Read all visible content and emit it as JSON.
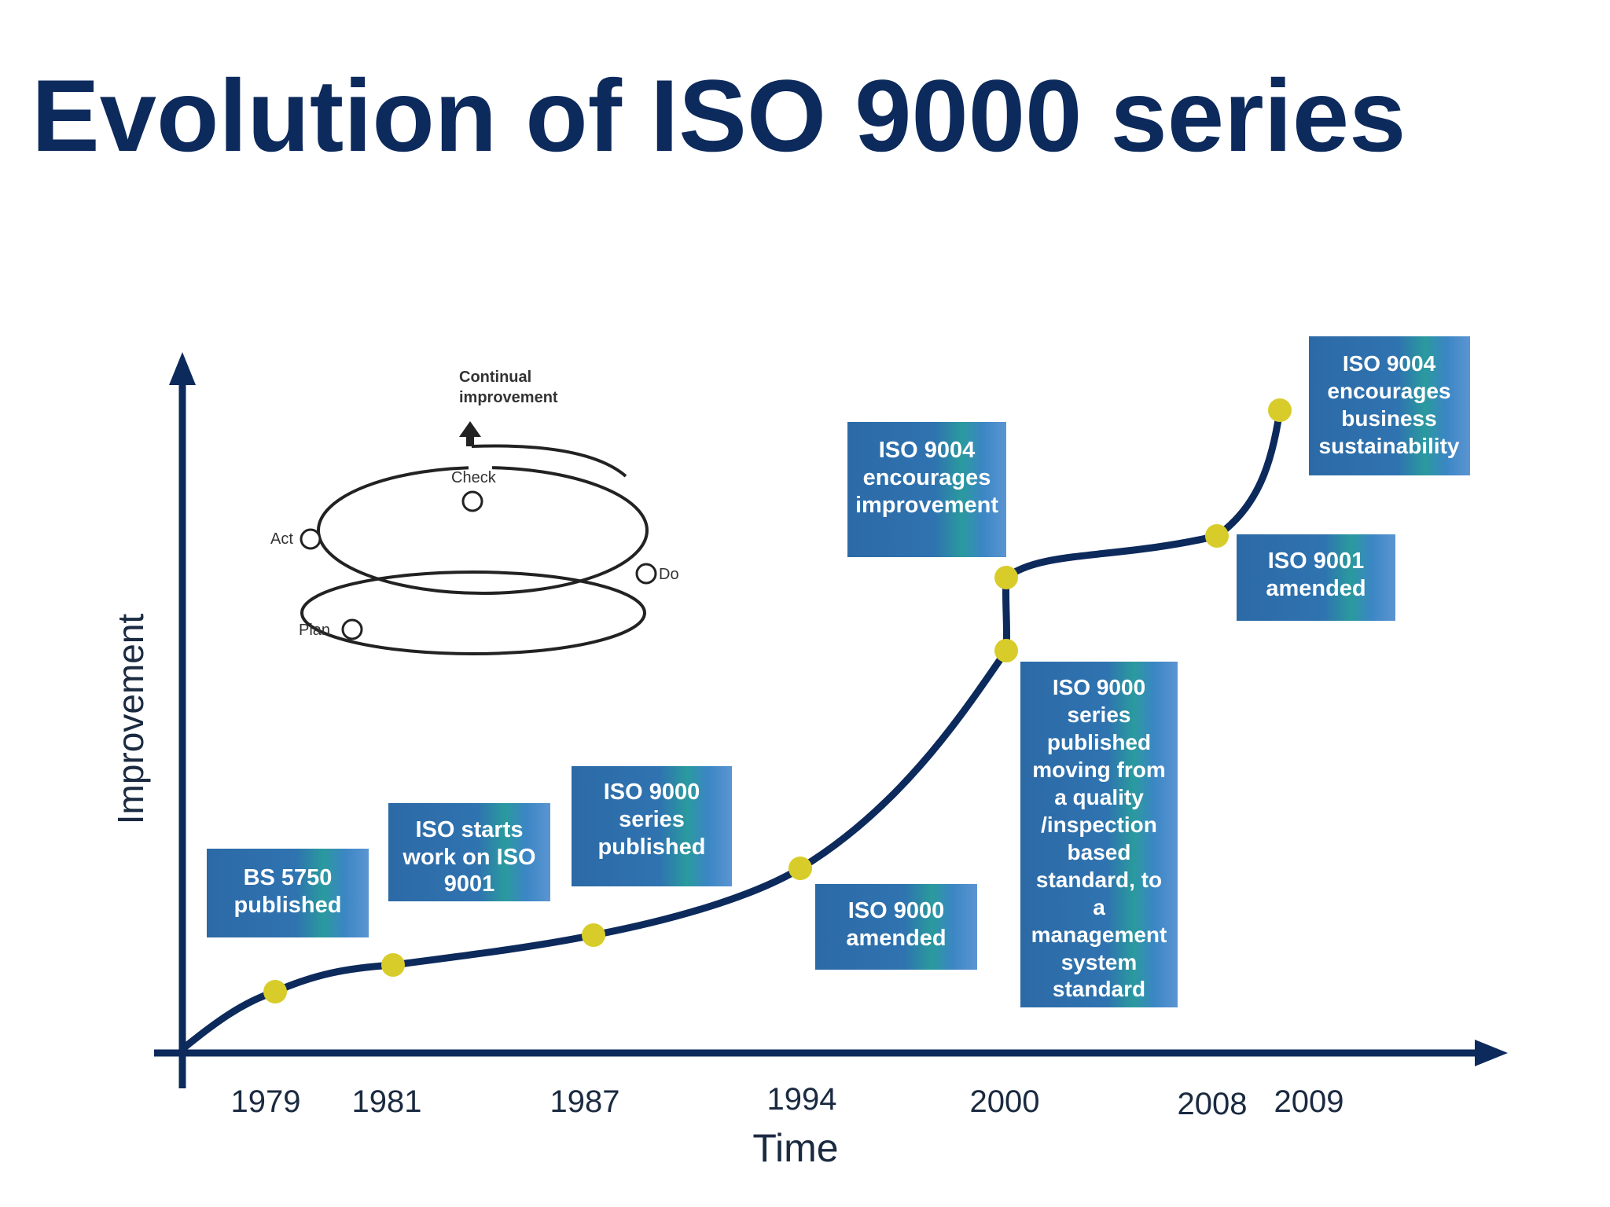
{
  "title": "Evolution of ISO 9000 series",
  "axes": {
    "y_label": "Improvement",
    "x_label": "Time"
  },
  "years": [
    "1979",
    "1981",
    "1987",
    "1994",
    "2000",
    "2008",
    "2009"
  ],
  "milestones": [
    {
      "year": "1979",
      "lines": [
        "BS 5750",
        "published"
      ]
    },
    {
      "year": "1981",
      "lines": [
        "ISO starts",
        "work on ISO",
        "9001"
      ]
    },
    {
      "year": "1987",
      "lines": [
        "ISO 9000",
        "series",
        "published"
      ]
    },
    {
      "year": "1994",
      "lines": [
        "ISO 9000",
        "amended"
      ]
    },
    {
      "year": "2000",
      "lines": [
        "ISO 9004",
        "encourages",
        "improvement"
      ]
    },
    {
      "year": "2000",
      "lines": [
        "ISO 9000",
        "series",
        "published",
        "moving from",
        "a quality",
        "/inspection",
        "based",
        "standard, to",
        "a",
        "management",
        "system",
        "standard"
      ]
    },
    {
      "year": "2008",
      "lines": [
        "ISO 9001",
        "amended"
      ]
    },
    {
      "year": "2009",
      "lines": [
        "ISO 9004",
        "encourages",
        "business",
        "sustainability"
      ]
    }
  ],
  "pdca": {
    "title_lines": [
      "Continual",
      "improvement"
    ],
    "plan": "Plan",
    "do": "Do",
    "check": "Check",
    "act": "Act"
  },
  "colors": {
    "title": "#0d2a5c",
    "axis": "#0d2a5c",
    "curve": "#0d2a5c",
    "marker": "#d8cc2a",
    "box_fill": "#2f71ad",
    "box_text": "#ffffff"
  }
}
